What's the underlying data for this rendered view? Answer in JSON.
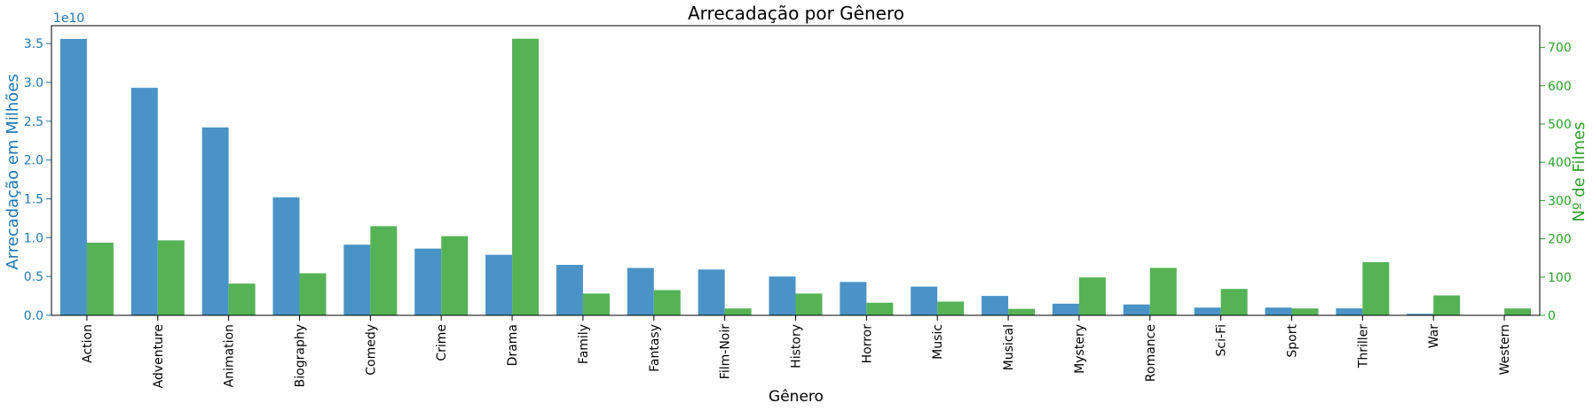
{
  "chart_data": {
    "type": "bar",
    "title": "Arrecadação por Gênero",
    "xlabel": "Gênero",
    "ylabel_left": "Arrecadação em Milhões",
    "ylabel_right": "Nº de Filmes",
    "offset_label": "1e10",
    "categories": [
      "Action",
      "Adventure",
      "Animation",
      "Biography",
      "Comedy",
      "Crime",
      "Drama",
      "Family",
      "Fantasy",
      "Film-Noir",
      "History",
      "Horror",
      "Music",
      "Musical",
      "Mystery",
      "Romance",
      "Sci-Fi",
      "Sport",
      "Thriller",
      "War",
      "Western"
    ],
    "series": [
      {
        "axis": "left",
        "color": "#4a93c6",
        "values": [
          35600000000.0,
          29300000000.0,
          24200000000.0,
          15200000000.0,
          9100000000.0,
          8600000000.0,
          7800000000.0,
          6500000000.0,
          6100000000.0,
          5900000000.0,
          5000000000.0,
          4300000000.0,
          3700000000.0,
          2500000000.0,
          1500000000.0,
          1400000000.0,
          1000000000.0,
          1000000000.0,
          900000000.0,
          200000000.0,
          0
        ]
      },
      {
        "axis": "right",
        "color": "#55b355",
        "values": [
          190,
          196,
          83,
          110,
          233,
          207,
          723,
          57,
          66,
          18,
          57,
          33,
          36,
          17,
          99,
          124,
          69,
          18,
          139,
          52,
          18
        ]
      }
    ],
    "ylim_left": [
      0,
      37300000000.0
    ],
    "ylim_right": [
      0,
      757
    ],
    "yticks_left": [
      0,
      5000000000.0,
      10000000000.0,
      15000000000.0,
      20000000000.0,
      25000000000.0,
      30000000000.0,
      35000000000.0
    ],
    "ytick_labels_left": [
      "0.0",
      "0.5",
      "1.0",
      "1.5",
      "2.0",
      "2.5",
      "3.0",
      "3.5"
    ],
    "yticks_right": [
      0,
      100,
      200,
      300,
      400,
      500,
      600,
      700
    ],
    "ytick_labels_right": [
      "0",
      "100",
      "200",
      "300",
      "400",
      "500",
      "600",
      "700"
    ],
    "left_axis_color": "#1f77b4",
    "right_axis_color": "#2ca02c",
    "grid": false,
    "legend": "none"
  }
}
